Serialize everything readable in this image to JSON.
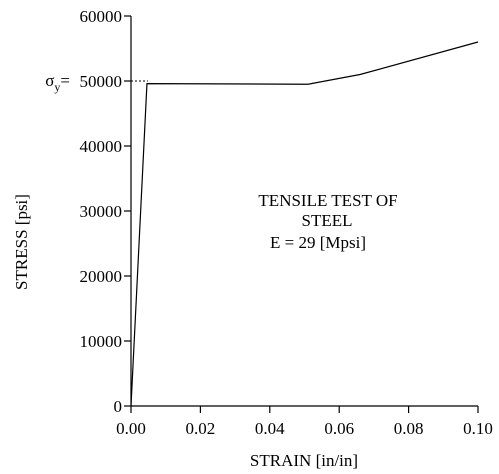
{
  "chart_data": {
    "type": "line",
    "title": "",
    "xlabel": "STRAIN [in/in]",
    "ylabel": "STRESS  [psi]",
    "xlim": [
      0.0,
      0.1
    ],
    "ylim": [
      0,
      60000
    ],
    "x_ticks": [
      "0.00",
      "0.02",
      "0.04",
      "0.06",
      "0.08",
      "0.10"
    ],
    "y_ticks": [
      "0",
      "10000",
      "20000",
      "30000",
      "40000",
      "50000",
      "60000"
    ],
    "series": [
      {
        "x": [
          0.0,
          0.0046,
          0.0046,
          0.051,
          0.066,
          0.1
        ],
        "y": [
          0,
          49600,
          49600,
          49500,
          51000,
          56000
        ]
      }
    ],
    "yield_marker": {
      "label_main": "σ",
      "label_sub": "y",
      "y": 50000
    },
    "annotation": {
      "line1": "TENSILE TEST OF",
      "line2": "STEEL",
      "line3": "E = 29 [Mpsi]"
    },
    "grid": false,
    "legend": "none"
  }
}
